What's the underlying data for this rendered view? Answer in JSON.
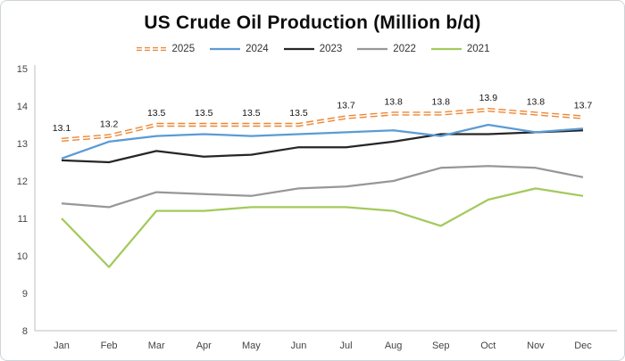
{
  "chart_data": {
    "type": "line",
    "title": "US Crude Oil Production (Million b/d)",
    "xlabel": "",
    "ylabel": "",
    "legend_position": "top",
    "grid": false,
    "y_axis": {
      "min": 8,
      "max": 15,
      "step": 1
    },
    "ylim": [
      8,
      15
    ],
    "categories": [
      "Jan",
      "Feb",
      "Mar",
      "Apr",
      "May",
      "Jun",
      "Jul",
      "Aug",
      "Sep",
      "Oct",
      "Nov",
      "Dec"
    ],
    "series": [
      {
        "name": "2025",
        "color": "#ED8733",
        "dashed": true,
        "stroke_width": 4,
        "data_labels": true,
        "values": [
          13.1,
          13.2,
          13.5,
          13.5,
          13.5,
          13.5,
          13.7,
          13.8,
          13.8,
          13.9,
          13.8,
          13.7
        ]
      },
      {
        "name": "2024",
        "color": "#5B9BD5",
        "dashed": false,
        "stroke_width": 2.25,
        "data_labels": false,
        "values": [
          12.6,
          13.05,
          13.2,
          13.25,
          13.2,
          13.25,
          13.3,
          13.35,
          13.2,
          13.5,
          13.3,
          13.4
        ]
      },
      {
        "name": "2023",
        "color": "#262626",
        "dashed": false,
        "stroke_width": 2.25,
        "data_labels": false,
        "values": [
          12.55,
          12.5,
          12.8,
          12.65,
          12.7,
          12.9,
          12.9,
          13.05,
          13.25,
          13.25,
          13.3,
          13.35
        ]
      },
      {
        "name": "2022",
        "color": "#979797",
        "dashed": false,
        "stroke_width": 2.25,
        "data_labels": false,
        "values": [
          11.4,
          11.3,
          11.7,
          11.65,
          11.6,
          11.8,
          11.85,
          12.0,
          12.35,
          12.4,
          12.35,
          12.1
        ]
      },
      {
        "name": "2021",
        "color": "#A3C95C",
        "dashed": false,
        "stroke_width": 2.25,
        "data_labels": false,
        "values": [
          11.0,
          9.7,
          11.2,
          11.2,
          11.3,
          11.3,
          11.3,
          11.2,
          10.8,
          11.5,
          11.8,
          11.6
        ]
      }
    ]
  }
}
